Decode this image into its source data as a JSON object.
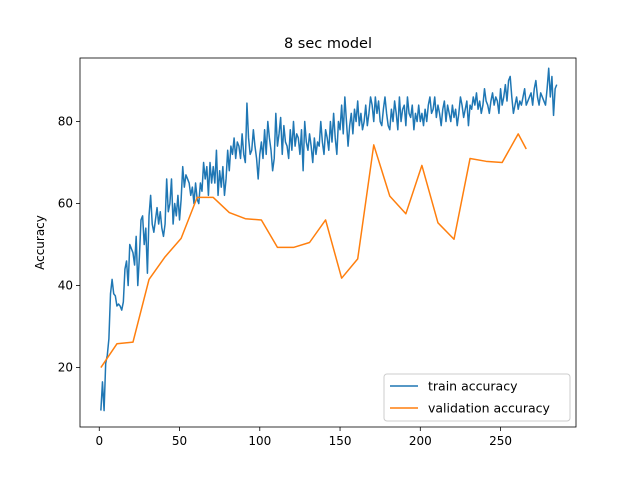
{
  "chart_data": {
    "type": "line",
    "title": "8 sec model",
    "xlabel": "",
    "ylabel": "Accuracy",
    "xlim": [
      -12,
      297
    ],
    "ylim": [
      5.5,
      95.5
    ],
    "xticks": [
      0,
      50,
      100,
      150,
      200,
      250
    ],
    "yticks": [
      20,
      40,
      60,
      80
    ],
    "grid": false,
    "legend": {
      "position": "bottom-right"
    },
    "series": [
      {
        "name": "train accuracy",
        "color": "#1f77b4",
        "points": [
          [
            1,
            9.5
          ],
          [
            2,
            16.5
          ],
          [
            3,
            9.5
          ],
          [
            4,
            21
          ],
          [
            5,
            23
          ],
          [
            6,
            27
          ],
          [
            7,
            38
          ],
          [
            8,
            41.5
          ],
          [
            9,
            38
          ],
          [
            10,
            37.5
          ],
          [
            11,
            35
          ],
          [
            12,
            35.5
          ],
          [
            13,
            35
          ],
          [
            14,
            34
          ],
          [
            15,
            36
          ],
          [
            16,
            44
          ],
          [
            17,
            46
          ],
          [
            18,
            40
          ],
          [
            19,
            50
          ],
          [
            20,
            49
          ],
          [
            21,
            48
          ],
          [
            22,
            45
          ],
          [
            23,
            52
          ],
          [
            24,
            40
          ],
          [
            25,
            47
          ],
          [
            26,
            56
          ],
          [
            27,
            57
          ],
          [
            28,
            50
          ],
          [
            29,
            54
          ],
          [
            30,
            43
          ],
          [
            31,
            57
          ],
          [
            32,
            62
          ],
          [
            33,
            55
          ],
          [
            34,
            53
          ],
          [
            35,
            56
          ],
          [
            36,
            59
          ],
          [
            37,
            55
          ],
          [
            38,
            58
          ],
          [
            39,
            54
          ],
          [
            40,
            52
          ],
          [
            41,
            55
          ],
          [
            42,
            66
          ],
          [
            43,
            58
          ],
          [
            44,
            60
          ],
          [
            45,
            66
          ],
          [
            46,
            55
          ],
          [
            47,
            60
          ],
          [
            48,
            57
          ],
          [
            49,
            62
          ],
          [
            50,
            56
          ],
          [
            51,
            61
          ],
          [
            52,
            69
          ],
          [
            53,
            64
          ],
          [
            54,
            67
          ],
          [
            55,
            66
          ],
          [
            56,
            65
          ],
          [
            57,
            62
          ],
          [
            58,
            64
          ],
          [
            59,
            60
          ],
          [
            60,
            65
          ],
          [
            61,
            61
          ],
          [
            62,
            60
          ],
          [
            63,
            65
          ],
          [
            64,
            63
          ],
          [
            65,
            70
          ],
          [
            66,
            66
          ],
          [
            67,
            69
          ],
          [
            68,
            62
          ],
          [
            69,
            70
          ],
          [
            70,
            65
          ],
          [
            71,
            69
          ],
          [
            72,
            65
          ],
          [
            73,
            73
          ],
          [
            74,
            62
          ],
          [
            75,
            68
          ],
          [
            76,
            64
          ],
          [
            77,
            69
          ],
          [
            78,
            62
          ],
          [
            79,
            66
          ],
          [
            80,
            73
          ],
          [
            81,
            68
          ],
          [
            82,
            74
          ],
          [
            83,
            72
          ],
          [
            84,
            76
          ],
          [
            85,
            71
          ],
          [
            86,
            75
          ],
          [
            87,
            74
          ],
          [
            88,
            71
          ],
          [
            89,
            77
          ],
          [
            90,
            72
          ],
          [
            91,
            70
          ],
          [
            92,
            84.5
          ],
          [
            93,
            76
          ],
          [
            94,
            72
          ],
          [
            95,
            73
          ],
          [
            96,
            78
          ],
          [
            97,
            74
          ],
          [
            98,
            71
          ],
          [
            99,
            66
          ],
          [
            100,
            72
          ],
          [
            101,
            75
          ],
          [
            102,
            71
          ],
          [
            103,
            78
          ],
          [
            104,
            72
          ],
          [
            105,
            80
          ],
          [
            106,
            76
          ],
          [
            107,
            73
          ],
          [
            108,
            68
          ],
          [
            109,
            71
          ],
          [
            110,
            82
          ],
          [
            111,
            74
          ],
          [
            112,
            77
          ],
          [
            113,
            81
          ],
          [
            114,
            72
          ],
          [
            115,
            79
          ],
          [
            116,
            75
          ],
          [
            117,
            74
          ],
          [
            118,
            71
          ],
          [
            119,
            78
          ],
          [
            120,
            73
          ],
          [
            121,
            80
          ],
          [
            122,
            74
          ],
          [
            123,
            77
          ],
          [
            124,
            76
          ],
          [
            125,
            72
          ],
          [
            126,
            78
          ],
          [
            127,
            68
          ],
          [
            128,
            80
          ],
          [
            129,
            75
          ],
          [
            130,
            73
          ],
          [
            131,
            77
          ],
          [
            132,
            74
          ],
          [
            133,
            70
          ],
          [
            134,
            76
          ],
          [
            135,
            72
          ],
          [
            136,
            75
          ],
          [
            137,
            74
          ],
          [
            138,
            80
          ],
          [
            139,
            75
          ],
          [
            140,
            72
          ],
          [
            141,
            78
          ],
          [
            142,
            76
          ],
          [
            143,
            73
          ],
          [
            144,
            80
          ],
          [
            145,
            75
          ],
          [
            146,
            82
          ],
          [
            147,
            76
          ],
          [
            148,
            72
          ],
          [
            149,
            80
          ],
          [
            150,
            78
          ],
          [
            151,
            84
          ],
          [
            152,
            77
          ],
          [
            153,
            86
          ],
          [
            154,
            80
          ],
          [
            155,
            74
          ],
          [
            156,
            79
          ],
          [
            157,
            82
          ],
          [
            158,
            77
          ],
          [
            159,
            83
          ],
          [
            160,
            80
          ],
          [
            161,
            85
          ],
          [
            162,
            79
          ],
          [
            163,
            82
          ],
          [
            164,
            78
          ],
          [
            165,
            80
          ],
          [
            166,
            84
          ],
          [
            167,
            79
          ],
          [
            168,
            82
          ],
          [
            169,
            86
          ],
          [
            170,
            84
          ],
          [
            171,
            80
          ],
          [
            172,
            86
          ],
          [
            173,
            82
          ],
          [
            174,
            85
          ],
          [
            175,
            80
          ],
          [
            176,
            79
          ],
          [
            177,
            83
          ],
          [
            178,
            86
          ],
          [
            179,
            82
          ],
          [
            180,
            79
          ],
          [
            181,
            78
          ],
          [
            182,
            83
          ],
          [
            183,
            80
          ],
          [
            184,
            85
          ],
          [
            185,
            82
          ],
          [
            186,
            78
          ],
          [
            187,
            86
          ],
          [
            188,
            80
          ],
          [
            189,
            83
          ],
          [
            190,
            84
          ],
          [
            191,
            79
          ],
          [
            192,
            86
          ],
          [
            193,
            82
          ],
          [
            194,
            81
          ],
          [
            195,
            84
          ],
          [
            196,
            78
          ],
          [
            197,
            82
          ],
          [
            198,
            80
          ],
          [
            199,
            84
          ],
          [
            200,
            80
          ],
          [
            201,
            82
          ],
          [
            202,
            79
          ],
          [
            203,
            83
          ],
          [
            204,
            80
          ],
          [
            205,
            84
          ],
          [
            206,
            86
          ],
          [
            207,
            82
          ],
          [
            208,
            83
          ],
          [
            209,
            86
          ],
          [
            210,
            81
          ],
          [
            211,
            84
          ],
          [
            212,
            82
          ],
          [
            213,
            79
          ],
          [
            214,
            83
          ],
          [
            215,
            85
          ],
          [
            216,
            80
          ],
          [
            217,
            84
          ],
          [
            218,
            82
          ],
          [
            219,
            80
          ],
          [
            220,
            84
          ],
          [
            221,
            81
          ],
          [
            222,
            83
          ],
          [
            223,
            79
          ],
          [
            224,
            82
          ],
          [
            225,
            86
          ],
          [
            226,
            84
          ],
          [
            227,
            81
          ],
          [
            228,
            83
          ],
          [
            229,
            85
          ],
          [
            230,
            79
          ],
          [
            231,
            84
          ],
          [
            232,
            83
          ],
          [
            233,
            86
          ],
          [
            234,
            84
          ],
          [
            235,
            87
          ],
          [
            236,
            83
          ],
          [
            237,
            85
          ],
          [
            238,
            82
          ],
          [
            239,
            84
          ],
          [
            240,
            88
          ],
          [
            241,
            85
          ],
          [
            242,
            84
          ],
          [
            243,
            82
          ],
          [
            244,
            85
          ],
          [
            245,
            87
          ],
          [
            246,
            84
          ],
          [
            247,
            86
          ],
          [
            248,
            85
          ],
          [
            249,
            82
          ],
          [
            250,
            88
          ],
          [
            251,
            84
          ],
          [
            252,
            86
          ],
          [
            253,
            89
          ],
          [
            254,
            85
          ],
          [
            255,
            90
          ],
          [
            256,
            91
          ],
          [
            257,
            86
          ],
          [
            258,
            82
          ],
          [
            259,
            84
          ],
          [
            260,
            86
          ],
          [
            261,
            83
          ],
          [
            262,
            85
          ],
          [
            263,
            84
          ],
          [
            264,
            86
          ],
          [
            265,
            88
          ],
          [
            266,
            84
          ],
          [
            267,
            85
          ],
          [
            268,
            86
          ],
          [
            269,
            87
          ],
          [
            270,
            84
          ],
          [
            271,
            88
          ],
          [
            272,
            90
          ],
          [
            273,
            86
          ],
          [
            274,
            84
          ],
          [
            275,
            87
          ],
          [
            276,
            86
          ],
          [
            277,
            85
          ],
          [
            278,
            84
          ],
          [
            279,
            88
          ],
          [
            280,
            93
          ],
          [
            281,
            86
          ],
          [
            282,
            91
          ],
          [
            283,
            81.5
          ],
          [
            284,
            88
          ],
          [
            285,
            89
          ]
        ]
      },
      {
        "name": "validation accuracy",
        "color": "#ff7f0e",
        "points": [
          [
            1,
            20
          ],
          [
            11,
            25.8
          ],
          [
            21,
            26.2
          ],
          [
            31,
            41.5
          ],
          [
            41,
            47
          ],
          [
            51,
            51.5
          ],
          [
            61,
            61.5
          ],
          [
            71,
            61.5
          ],
          [
            81,
            57.8
          ],
          [
            91,
            56.3
          ],
          [
            101,
            56
          ],
          [
            111,
            49.3
          ],
          [
            121,
            49.3
          ],
          [
            131,
            50.5
          ],
          [
            141,
            56
          ],
          [
            151,
            41.8
          ],
          [
            161,
            46.5
          ],
          [
            171,
            74.3
          ],
          [
            181,
            61.8
          ],
          [
            191,
            57.5
          ],
          [
            201,
            69.3
          ],
          [
            211,
            55.3
          ],
          [
            221,
            51.3
          ],
          [
            231,
            71
          ],
          [
            241,
            70.3
          ],
          [
            251,
            70
          ],
          [
            261,
            77
          ],
          [
            266,
            73.3
          ]
        ]
      }
    ]
  }
}
